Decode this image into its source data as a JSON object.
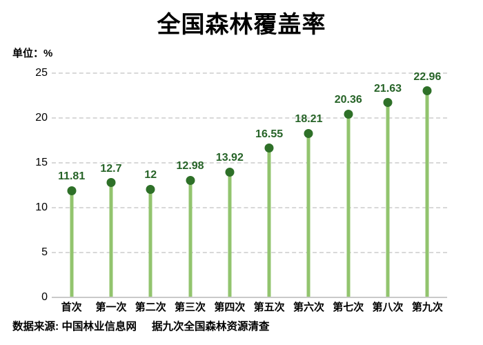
{
  "title": "全国森林覆盖率",
  "unit_label": "单位：%",
  "source": {
    "label": "数据来源: 中国林业信息网",
    "note": "据九次全国森林资源清查"
  },
  "colors": {
    "stem": "#92c46e",
    "dot": "#2e7028",
    "value_label": "#266327",
    "gridline": "#d8d8d8",
    "baseline": "#c9c9c9",
    "text": "#000000"
  },
  "chart_data": {
    "type": "bar",
    "style": "lollipop",
    "title": "全国森林覆盖率",
    "unit": "%",
    "categories": [
      "首次",
      "第一次",
      "第二次",
      "第三次",
      "第四次",
      "第五次",
      "第六次",
      "第七次",
      "第八次",
      "第九次"
    ],
    "values": [
      11.81,
      12.7,
      12,
      12.98,
      13.92,
      16.55,
      18.21,
      20.36,
      21.63,
      22.96
    ],
    "value_labels": [
      "11.81",
      "12.7",
      "12",
      "12.98",
      "13.92",
      "16.55",
      "18.21",
      "20.36",
      "21.63",
      "22.96"
    ],
    "xlabel": "",
    "ylabel": "单位：%",
    "ylim": [
      0,
      25
    ],
    "yticks": [
      0,
      5,
      10,
      15,
      20,
      25
    ],
    "grid": "horizontal-dashed",
    "legend": "none"
  }
}
